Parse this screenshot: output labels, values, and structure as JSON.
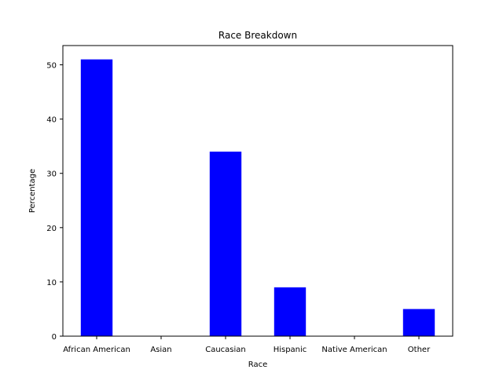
{
  "chart_data": {
    "type": "bar",
    "title": "Race Breakdown",
    "xlabel": "Race",
    "ylabel": "Percentage",
    "categories": [
      "African American",
      "Asian",
      "Caucasian",
      "Hispanic",
      "Native American",
      "Other"
    ],
    "values": [
      51,
      0,
      34,
      9,
      0,
      5
    ],
    "ylim": [
      0,
      53.55
    ],
    "yticks": [
      0,
      10,
      20,
      30,
      40,
      50
    ],
    "bar_color": "#0000ff",
    "grid": false
  }
}
